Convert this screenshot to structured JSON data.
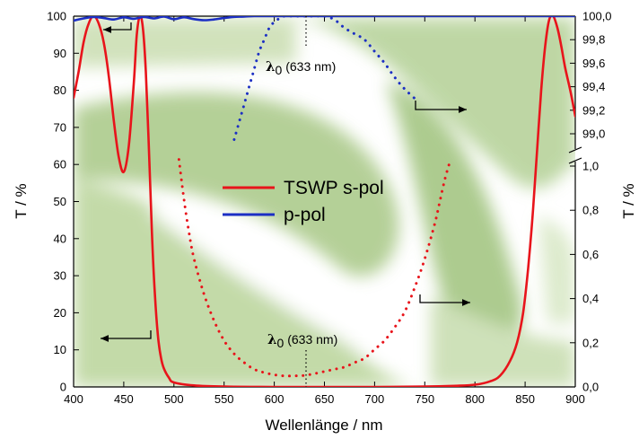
{
  "chart_data": {
    "type": "line",
    "title": "",
    "xlabel": "Wellenlänge / nm",
    "ylabel_left": "T / %",
    "ylabel_right": "T / %",
    "xlim": [
      400,
      900
    ],
    "xticks": [
      "400",
      "450",
      "500",
      "550",
      "600",
      "650",
      "700",
      "750",
      "800",
      "850",
      "900"
    ],
    "ylim_left": [
      0,
      100
    ],
    "yticks_left": [
      "0",
      "10",
      "20",
      "30",
      "40",
      "50",
      "60",
      "70",
      "80",
      "90",
      "100"
    ],
    "right_axis_lower": {
      "range": [
        0.0,
        1.0
      ],
      "ticks": [
        "0,0",
        "0,2",
        "0,4",
        "0,6",
        "0,8",
        "1,0"
      ]
    },
    "right_axis_upper": {
      "range": [
        99.0,
        100.0
      ],
      "ticks": [
        "99,0",
        "99,2",
        "99,4",
        "99,6",
        "99,8",
        "100,0"
      ]
    },
    "grid": false,
    "legend": {
      "placement": "center",
      "entries": [
        "TSWP s-pol",
        "p-pol"
      ]
    },
    "annotations": {
      "lambda_upper": {
        "symbol": "λ",
        "sub": "0",
        "text": " (633 nm)",
        "x": 633
      },
      "lambda_lower": {
        "symbol": "λ",
        "sub": "0",
        "text": " (633 nm)",
        "x": 633
      }
    },
    "series": [
      {
        "name": "TSWP s-pol",
        "axis": "left",
        "style": "solid",
        "color": "#e8141b",
        "x": [
          400,
          405,
          410,
          415,
          420,
          425,
          430,
          435,
          440,
          445,
          450,
          455,
          460,
          463,
          466,
          469,
          472,
          475,
          478,
          481,
          484,
          487,
          490,
          495,
          500,
          520,
          550,
          600,
          650,
          700,
          750,
          780,
          800,
          815,
          825,
          835,
          842,
          848,
          853,
          858,
          862,
          866,
          870,
          874,
          878,
          882,
          886,
          890,
          895,
          900
        ],
        "y": [
          78,
          85,
          93,
          98,
          100,
          98,
          93,
          84,
          72,
          62,
          58,
          65,
          82,
          95,
          100,
          97,
          85,
          65,
          42,
          25,
          14,
          8,
          5,
          2.5,
          1.2,
          0.4,
          0.1,
          0,
          0,
          0,
          0.1,
          0.3,
          0.6,
          1.5,
          3,
          7,
          12,
          20,
          32,
          48,
          64,
          80,
          92,
          99,
          100,
          97,
          92,
          86,
          80,
          73
        ]
      },
      {
        "name": "p-pol",
        "axis": "left",
        "style": "solid",
        "color": "#1c2fc4",
        "x": [
          400,
          410,
          420,
          430,
          440,
          450,
          460,
          470,
          480,
          490,
          500,
          510,
          520,
          530,
          540,
          550,
          560,
          570,
          580,
          600,
          650,
          700,
          750,
          800,
          850,
          900
        ],
        "y": [
          98.8,
          99.4,
          99.8,
          99.5,
          99.1,
          99.7,
          99.3,
          99.8,
          99.4,
          99.9,
          99.2,
          99.7,
          99.2,
          98.9,
          99.1,
          99.5,
          99.8,
          99.9,
          100,
          100,
          100,
          100,
          100,
          100,
          100,
          100
        ]
      },
      {
        "name": "",
        "axis": "right_upper",
        "style": "dotted",
        "color": "#1c2fc4",
        "x": [
          560,
          565,
          570,
          575,
          580,
          585,
          590,
          595,
          600,
          605,
          610,
          620,
          630,
          640,
          650,
          660,
          670,
          680,
          690,
          700,
          710,
          720,
          730,
          740
        ],
        "y": [
          98.95,
          99.1,
          99.25,
          99.4,
          99.55,
          99.7,
          99.8,
          99.9,
          99.95,
          99.98,
          100,
          100,
          100,
          100,
          100,
          99.97,
          99.9,
          99.85,
          99.8,
          99.7,
          99.6,
          99.48,
          99.38,
          99.3
        ]
      },
      {
        "name": "",
        "axis": "right_lower",
        "style": "dotted",
        "color": "#e8141b",
        "x": [
          505,
          510,
          515,
          520,
          530,
          540,
          550,
          560,
          570,
          580,
          590,
          600,
          610,
          620,
          630,
          640,
          650,
          660,
          670,
          680,
          690,
          700,
          710,
          720,
          730,
          740,
          750,
          760,
          765,
          770,
          775
        ],
        "y": [
          1.03,
          0.85,
          0.7,
          0.58,
          0.42,
          0.3,
          0.21,
          0.15,
          0.11,
          0.08,
          0.065,
          0.055,
          0.05,
          0.05,
          0.052,
          0.06,
          0.07,
          0.08,
          0.09,
          0.11,
          0.13,
          0.17,
          0.21,
          0.27,
          0.34,
          0.45,
          0.58,
          0.74,
          0.84,
          0.94,
          1.02
        ]
      }
    ]
  }
}
